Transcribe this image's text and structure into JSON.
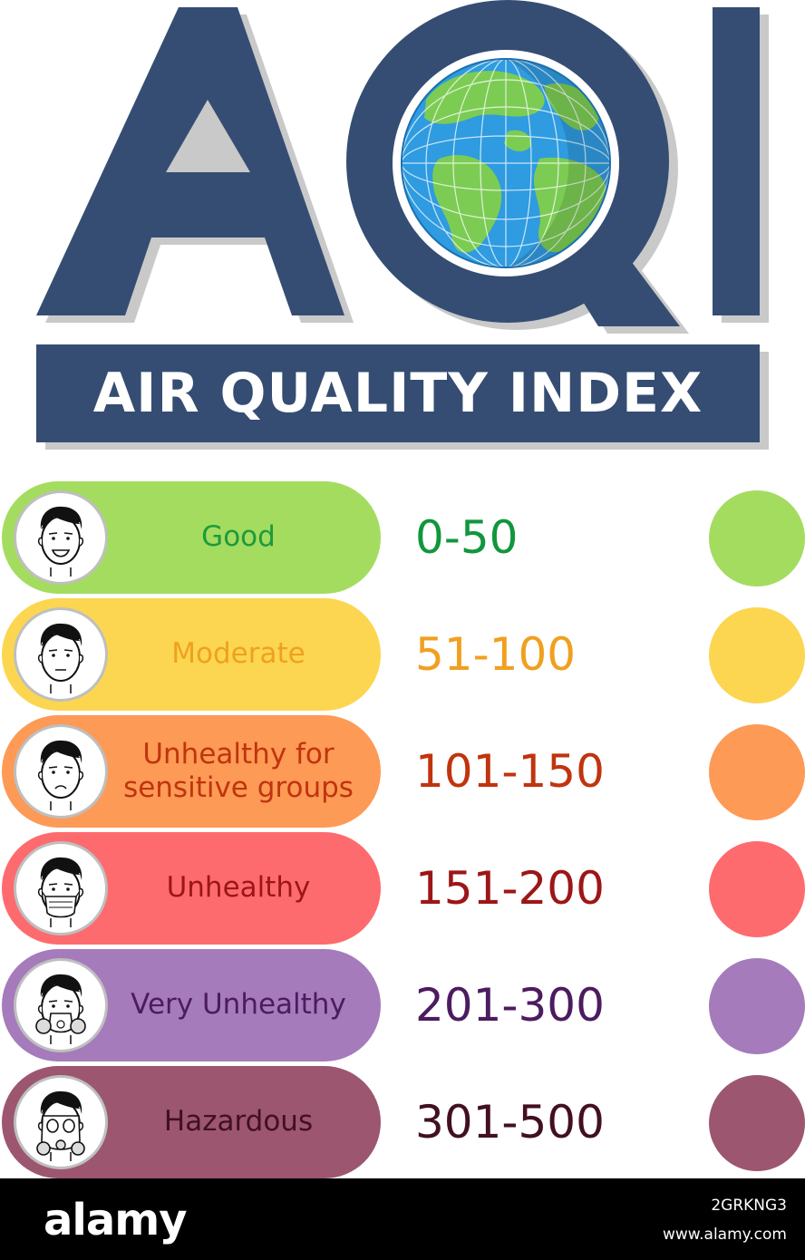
{
  "title": {
    "acronym": "AQI",
    "banner": "AIR QUALITY INDEX",
    "color": "#354d72"
  },
  "levels": [
    {
      "label": "Good",
      "range": "0-50",
      "pill_color": "#a4dc60",
      "text_color": "#1e9a3c",
      "range_color": "#12963c",
      "dot_color": "#a4dc60",
      "face": "smiling-face-icon"
    },
    {
      "label": "Moderate",
      "range": "51-100",
      "pill_color": "#fcd650",
      "text_color": "#f0a020",
      "range_color": "#f0a020",
      "dot_color": "#fcd650",
      "face": "neutral-face-icon"
    },
    {
      "label": "Unhealthy for\nsensitive groups",
      "range": "101-150",
      "pill_color": "#fd9a56",
      "text_color": "#c0340e",
      "range_color": "#c0340e",
      "dot_color": "#fd9a56",
      "face": "sad-face-icon"
    },
    {
      "label": "Unhealthy",
      "range": "151-200",
      "pill_color": "#fe6b6e",
      "text_color": "#9c1618",
      "range_color": "#9c1618",
      "dot_color": "#fe6b6e",
      "face": "face-mask-icon"
    },
    {
      "label": "Very Unhealthy",
      "range": "201-300",
      "pill_color": "#a57bbc",
      "text_color": "#4c1b60",
      "range_color": "#4c1b60",
      "dot_color": "#a57bbc",
      "face": "respirator-mask-icon"
    },
    {
      "label": "Hazardous",
      "range": "301-500",
      "pill_color": "#9c5670",
      "text_color": "#421020",
      "range_color": "#421020",
      "dot_color": "#9c5670",
      "face": "gas-mask-icon"
    }
  ],
  "footer": {
    "logo": "alamy",
    "image_id": "2GRKNG3",
    "url": "www.alamy.com"
  }
}
